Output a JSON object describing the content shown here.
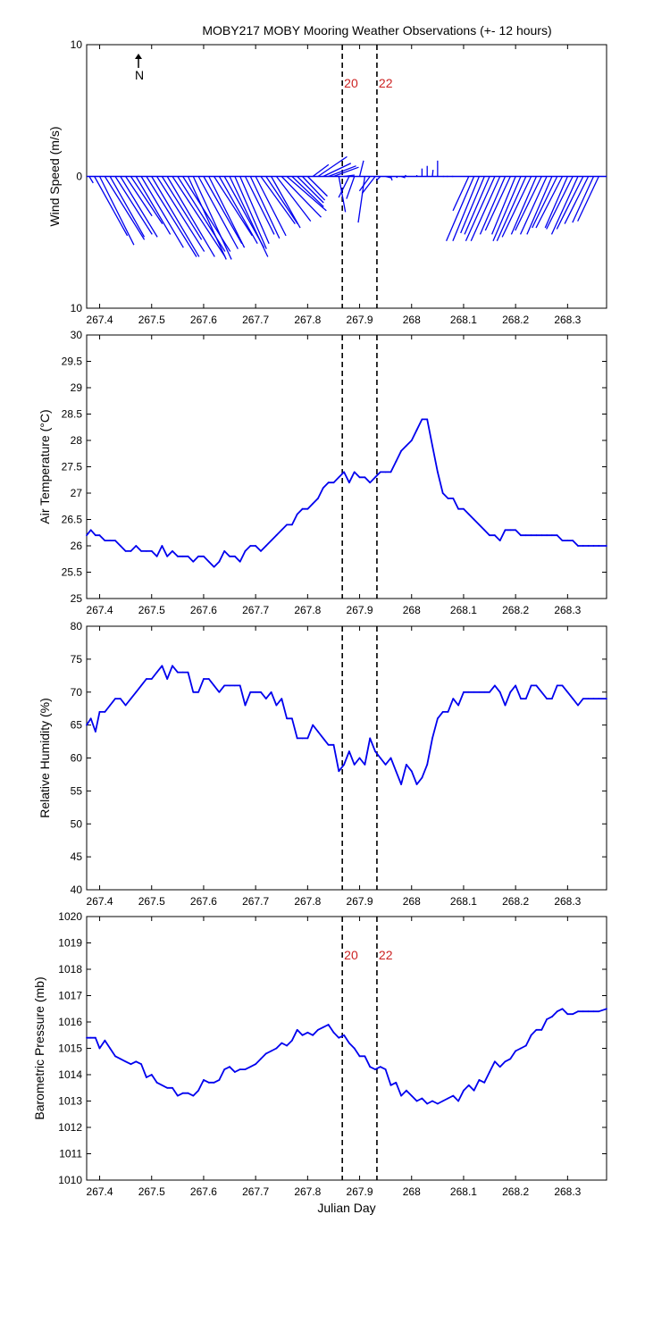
{
  "chart_data": [
    {
      "type": "quiver",
      "title": "MOBY217 MOBY Mooring Weather Observations (+- 12 hours)",
      "ylabel": "Wind Speed (m/s)",
      "xlabel": "",
      "xlim": [
        267.375,
        268.375
      ],
      "ylim": [
        -10,
        10
      ],
      "yticks": [
        "10",
        "0",
        "10"
      ],
      "xticks": [
        "267.4",
        "267.5",
        "267.6",
        "267.7",
        "267.8",
        "267.9",
        "268",
        "268.1",
        "268.2",
        "268.3"
      ],
      "north_label": "N",
      "vlines": [
        267.8667,
        267.9333
      ],
      "vline_labels": [
        "20",
        "22"
      ],
      "x": [
        267.38,
        267.39,
        267.4,
        267.41,
        267.42,
        267.43,
        267.44,
        267.45,
        267.46,
        267.47,
        267.48,
        267.49,
        267.5,
        267.51,
        267.52,
        267.53,
        267.54,
        267.55,
        267.56,
        267.57,
        267.58,
        267.59,
        267.6,
        267.61,
        267.62,
        267.63,
        267.64,
        267.65,
        267.66,
        267.67,
        267.68,
        267.69,
        267.7,
        267.71,
        267.72,
        267.73,
        267.74,
        267.75,
        267.76,
        267.77,
        267.78,
        267.79,
        267.8,
        267.81,
        267.82,
        267.83,
        267.84,
        267.85,
        267.86,
        267.87,
        267.88,
        267.89,
        267.9,
        267.91,
        267.92,
        267.93,
        267.94,
        267.95,
        267.96,
        267.97,
        267.98,
        267.99,
        268.0,
        268.01,
        268.02,
        268.03,
        268.04,
        268.05,
        268.06,
        268.07,
        268.08,
        268.09,
        268.1,
        268.11,
        268.12,
        268.13,
        268.14,
        268.15,
        268.16,
        268.17,
        268.18,
        268.19,
        268.2,
        268.21,
        268.22,
        268.23,
        268.24,
        268.25,
        268.26,
        268.27,
        268.28,
        268.29,
        268.3,
        268.31,
        268.32,
        268.33,
        268.34,
        268.35,
        268.36,
        268.37
      ],
      "u": [
        0.3,
        2.5,
        2.6,
        3.0,
        2.6,
        2.8,
        2.8,
        2.0,
        2.4,
        2.6,
        3.2,
        3.8,
        3.6,
        3.6,
        3.0,
        3.6,
        4.0,
        3.6,
        3.6,
        2.9,
        2.9,
        3.0,
        2.9,
        2.7,
        2.9,
        2.9,
        3.0,
        2.9,
        2.4,
        2.2,
        2.2,
        2.2,
        2.3,
        2.6,
        2.4,
        2.2,
        2.6,
        3.0,
        3.0,
        2.4,
        2.0,
        1.7,
        1.5,
        1.2,
        2.2,
        2.1,
        2.1,
        1.9,
        0.5,
        0.8,
        -0.8,
        -0.6,
        0.3,
        -0.5,
        -0.8,
        -1.0,
        -0.3,
        0.4,
        0.1,
        0.1,
        0.3,
        -0.1,
        0,
        0,
        0,
        0,
        0.05,
        0,
        0.1,
        -0.1,
        -0.1,
        0,
        0,
        -1.2,
        -2.1,
        -2.0,
        -1.8,
        -1.9,
        -2.2,
        -2.2,
        -1.9,
        -1.9,
        -1.8,
        -2.1,
        -2.2,
        -2.2,
        -1.9,
        -2.0,
        -2.0,
        -1.9,
        -1.9,
        -2.0,
        -1.7,
        -2.0,
        -2.0,
        -2.0,
        -1.8,
        -1.6,
        -1.6,
        0
      ],
      "v": [
        -0.5,
        -4.5,
        -5.2,
        -4.8,
        -4.6,
        -4.4,
        -4.6,
        -3.0,
        -3.6,
        -4.4,
        -5.4,
        -6.1,
        -6.1,
        -5.7,
        -4.8,
        -6.1,
        -6.1,
        -5.7,
        -5.7,
        -6.3,
        -6.3,
        -5.5,
        -5.1,
        -5.4,
        -4.5,
        -5.1,
        -5.4,
        -6.1,
        -5.5,
        -5.1,
        -4.4,
        -4.7,
        -4.5,
        -3.6,
        -3.6,
        -3.9,
        -3.4,
        -3.1,
        -2.6,
        -2.3,
        -2.0,
        -1.8,
        -1.5,
        0.9,
        1.5,
        1.0,
        0.8,
        0.7,
        -2.7,
        0.1,
        -1.6,
        -1.7,
        1.2,
        -3.5,
        -1.1,
        -1.3,
        -0.3,
        -0.1,
        -0.3,
        -0.1,
        -0.1,
        0.1,
        0,
        0.1,
        0.6,
        0.8,
        0.5,
        1.2,
        0,
        0,
        0,
        0,
        0,
        -2.6,
        -4.9,
        -4.9,
        -4.3,
        -4.4,
        -4.9,
        -4.9,
        -4.4,
        -4.1,
        -4.4,
        -4.9,
        -4.9,
        -4.6,
        -4.4,
        -4.1,
        -4.4,
        -4.4,
        -3.9,
        -3.9,
        -3.9,
        -4.0,
        -4.4,
        -4.0,
        -3.6,
        -3.5,
        -3.4,
        0
      ]
    },
    {
      "type": "line",
      "title": "",
      "ylabel": "Air Temperature (°C)",
      "xlabel": "",
      "xlim": [
        267.375,
        268.375
      ],
      "ylim": [
        25,
        30
      ],
      "yticks": [
        "25",
        "25.5",
        "26",
        "26.5",
        "27",
        "27.5",
        "28",
        "28.5",
        "29",
        "29.5",
        "30"
      ],
      "xticks": [
        "267.4",
        "267.5",
        "267.6",
        "267.7",
        "267.8",
        "267.9",
        "268",
        "268.1",
        "268.2",
        "268.3"
      ],
      "vlines": [
        267.8667,
        267.9333
      ],
      "x": [
        267.375,
        267.383,
        267.392,
        267.4,
        267.41,
        267.42,
        267.43,
        267.44,
        267.45,
        267.46,
        267.47,
        267.48,
        267.49,
        267.5,
        267.51,
        267.52,
        267.53,
        267.54,
        267.55,
        267.56,
        267.57,
        267.58,
        267.59,
        267.6,
        267.61,
        267.62,
        267.63,
        267.64,
        267.65,
        267.66,
        267.67,
        267.68,
        267.69,
        267.7,
        267.71,
        267.72,
        267.73,
        267.74,
        267.75,
        267.76,
        267.77,
        267.78,
        267.79,
        267.8,
        267.81,
        267.82,
        267.83,
        267.84,
        267.85,
        267.86,
        267.87,
        267.88,
        267.89,
        267.9,
        267.91,
        267.92,
        267.93,
        267.94,
        267.95,
        267.96,
        267.97,
        267.98,
        267.99,
        268.0,
        268.01,
        268.02,
        268.03,
        268.04,
        268.05,
        268.06,
        268.07,
        268.08,
        268.09,
        268.1,
        268.11,
        268.12,
        268.13,
        268.14,
        268.15,
        268.16,
        268.17,
        268.18,
        268.19,
        268.2,
        268.21,
        268.22,
        268.23,
        268.24,
        268.25,
        268.26,
        268.27,
        268.28,
        268.29,
        268.3,
        268.31,
        268.32,
        268.33,
        268.34,
        268.35,
        268.36,
        268.375
      ],
      "y": [
        26.2,
        26.3,
        26.2,
        26.2,
        26.1,
        26.1,
        26.1,
        26.0,
        25.9,
        25.9,
        26.0,
        25.9,
        25.9,
        25.9,
        25.8,
        26.0,
        25.8,
        25.9,
        25.8,
        25.8,
        25.8,
        25.7,
        25.8,
        25.8,
        25.7,
        25.6,
        25.7,
        25.9,
        25.8,
        25.8,
        25.7,
        25.9,
        26.0,
        26.0,
        25.9,
        26.0,
        26.1,
        26.2,
        26.3,
        26.4,
        26.4,
        26.6,
        26.7,
        26.7,
        26.8,
        26.9,
        27.1,
        27.2,
        27.2,
        27.3,
        27.4,
        27.2,
        27.4,
        27.3,
        27.3,
        27.2,
        27.3,
        27.4,
        27.4,
        27.4,
        27.6,
        27.8,
        27.9,
        28.0,
        28.2,
        28.4,
        28.4,
        27.9,
        27.4,
        27.0,
        26.9,
        26.9,
        26.7,
        26.7,
        26.6,
        26.5,
        26.4,
        26.3,
        26.2,
        26.2,
        26.1,
        26.3,
        26.3,
        26.3,
        26.2,
        26.2,
        26.2,
        26.2,
        26.2,
        26.2,
        26.2,
        26.2,
        26.1,
        26.1,
        26.1,
        26.0,
        26.0,
        26.0,
        26.0,
        26.0,
        26.0
      ]
    },
    {
      "type": "line",
      "title": "",
      "ylabel": "Relative Humidity (%)",
      "xlabel": "",
      "xlim": [
        267.375,
        268.375
      ],
      "ylim": [
        40,
        80
      ],
      "yticks": [
        "40",
        "45",
        "50",
        "55",
        "60",
        "65",
        "70",
        "75",
        "80"
      ],
      "xticks": [
        "267.4",
        "267.5",
        "267.6",
        "267.7",
        "267.8",
        "267.9",
        "268",
        "268.1",
        "268.2",
        "268.3"
      ],
      "vlines": [
        267.8667,
        267.9333
      ],
      "x": [
        267.375,
        267.383,
        267.392,
        267.4,
        267.41,
        267.42,
        267.43,
        267.44,
        267.45,
        267.46,
        267.47,
        267.48,
        267.49,
        267.5,
        267.51,
        267.52,
        267.53,
        267.54,
        267.55,
        267.56,
        267.57,
        267.58,
        267.59,
        267.6,
        267.61,
        267.62,
        267.63,
        267.64,
        267.65,
        267.66,
        267.67,
        267.68,
        267.69,
        267.7,
        267.71,
        267.72,
        267.73,
        267.74,
        267.75,
        267.76,
        267.77,
        267.78,
        267.79,
        267.8,
        267.81,
        267.82,
        267.83,
        267.84,
        267.85,
        267.86,
        267.87,
        267.88,
        267.89,
        267.9,
        267.91,
        267.92,
        267.93,
        267.94,
        267.95,
        267.96,
        267.97,
        267.98,
        267.99,
        268.0,
        268.01,
        268.02,
        268.03,
        268.04,
        268.05,
        268.06,
        268.07,
        268.08,
        268.09,
        268.1,
        268.11,
        268.12,
        268.13,
        268.14,
        268.15,
        268.16,
        268.17,
        268.18,
        268.19,
        268.2,
        268.21,
        268.22,
        268.23,
        268.24,
        268.25,
        268.26,
        268.27,
        268.28,
        268.29,
        268.3,
        268.31,
        268.32,
        268.33,
        268.34,
        268.35,
        268.36,
        268.375
      ],
      "y": [
        65,
        66,
        64,
        67,
        67,
        68,
        69,
        69,
        68,
        69,
        70,
        71,
        72,
        72,
        73,
        74,
        72,
        74,
        73,
        73,
        73,
        70,
        70,
        72,
        72,
        71,
        70,
        71,
        71,
        71,
        71,
        68,
        70,
        70,
        70,
        69,
        70,
        68,
        69,
        66,
        66,
        63,
        63,
        63,
        65,
        64,
        63,
        62,
        62,
        58,
        59,
        61,
        59,
        60,
        59,
        63,
        61,
        60,
        59,
        60,
        58,
        56,
        59,
        58,
        56,
        57,
        59,
        63,
        66,
        67,
        67,
        69,
        68,
        70,
        70,
        70,
        70,
        70,
        70,
        71,
        70,
        68,
        70,
        71,
        69,
        69,
        71,
        71,
        70,
        69,
        69,
        71,
        71,
        70,
        69,
        68,
        69,
        69,
        69,
        69,
        69
      ]
    },
    {
      "type": "line",
      "title": "",
      "ylabel": "Barometric Pressure (mb)",
      "xlabel": "Julian Day",
      "xlim": [
        267.375,
        268.375
      ],
      "ylim": [
        1010,
        1020
      ],
      "yticks": [
        "1010",
        "1011",
        "1012",
        "1013",
        "1014",
        "1015",
        "1016",
        "1017",
        "1018",
        "1019",
        "1020"
      ],
      "xticks": [
        "267.4",
        "267.5",
        "267.6",
        "267.7",
        "267.8",
        "267.9",
        "268",
        "268.1",
        "268.2",
        "268.3"
      ],
      "vlines": [
        267.8667,
        267.9333
      ],
      "vline_labels": [
        "20",
        "22"
      ],
      "x": [
        267.375,
        267.383,
        267.392,
        267.4,
        267.41,
        267.42,
        267.43,
        267.44,
        267.45,
        267.46,
        267.47,
        267.48,
        267.49,
        267.5,
        267.51,
        267.52,
        267.53,
        267.54,
        267.55,
        267.56,
        267.57,
        267.58,
        267.59,
        267.6,
        267.61,
        267.62,
        267.63,
        267.64,
        267.65,
        267.66,
        267.67,
        267.68,
        267.69,
        267.7,
        267.71,
        267.72,
        267.73,
        267.74,
        267.75,
        267.76,
        267.77,
        267.78,
        267.79,
        267.8,
        267.81,
        267.82,
        267.83,
        267.84,
        267.85,
        267.86,
        267.87,
        267.88,
        267.89,
        267.9,
        267.91,
        267.92,
        267.93,
        267.94,
        267.95,
        267.96,
        267.97,
        267.98,
        267.99,
        268.0,
        268.01,
        268.02,
        268.03,
        268.04,
        268.05,
        268.06,
        268.07,
        268.08,
        268.09,
        268.1,
        268.11,
        268.12,
        268.13,
        268.14,
        268.15,
        268.16,
        268.17,
        268.18,
        268.19,
        268.2,
        268.21,
        268.22,
        268.23,
        268.24,
        268.25,
        268.26,
        268.27,
        268.28,
        268.29,
        268.3,
        268.31,
        268.32,
        268.33,
        268.34,
        268.35,
        268.36,
        268.375
      ],
      "y": [
        1015.4,
        1015.4,
        1015.4,
        1015.0,
        1015.3,
        1015.0,
        1014.7,
        1014.6,
        1014.5,
        1014.4,
        1014.5,
        1014.4,
        1013.9,
        1014.0,
        1013.7,
        1013.6,
        1013.5,
        1013.5,
        1013.2,
        1013.3,
        1013.3,
        1013.2,
        1013.4,
        1013.8,
        1013.7,
        1013.7,
        1013.8,
        1014.2,
        1014.3,
        1014.1,
        1014.2,
        1014.2,
        1014.3,
        1014.4,
        1014.6,
        1014.8,
        1014.9,
        1015.0,
        1015.2,
        1015.1,
        1015.3,
        1015.7,
        1015.5,
        1015.6,
        1015.5,
        1015.7,
        1015.8,
        1015.9,
        1015.6,
        1015.4,
        1015.5,
        1015.2,
        1015.0,
        1014.7,
        1014.7,
        1014.3,
        1014.2,
        1014.3,
        1014.2,
        1013.6,
        1013.7,
        1013.2,
        1013.4,
        1013.2,
        1013.0,
        1013.1,
        1012.9,
        1013.0,
        1012.9,
        1013.0,
        1013.1,
        1013.2,
        1013.0,
        1013.4,
        1013.6,
        1013.4,
        1013.8,
        1013.7,
        1014.1,
        1014.5,
        1014.3,
        1014.5,
        1014.6,
        1014.9,
        1015.0,
        1015.1,
        1015.5,
        1015.7,
        1015.7,
        1016.1,
        1016.2,
        1016.4,
        1016.5,
        1016.3,
        1016.3,
        1016.4,
        1016.4,
        1016.4,
        1016.4,
        1016.4,
        1016.5
      ]
    }
  ]
}
